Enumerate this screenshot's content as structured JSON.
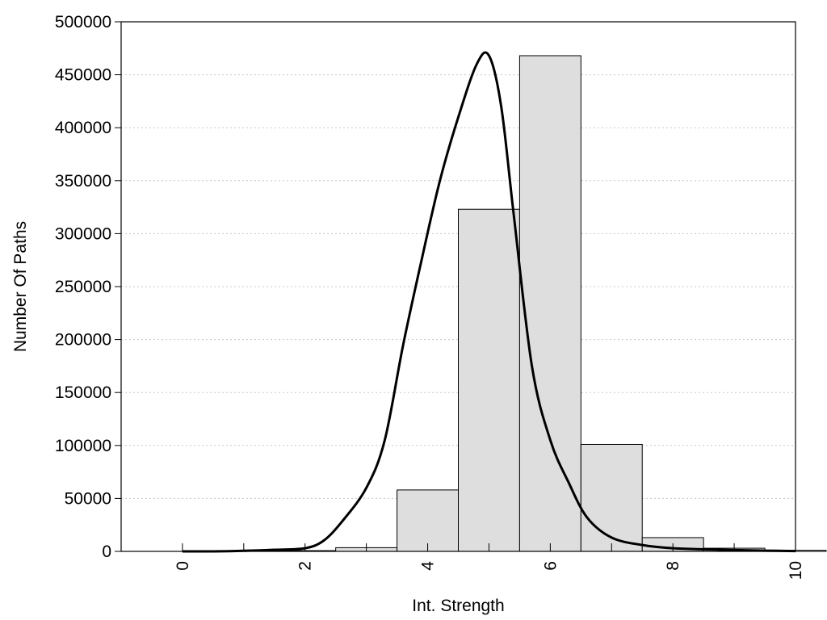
{
  "chart_data": {
    "type": "bar",
    "title": "",
    "xlabel": "Int. Strength",
    "ylabel": "Number Of Paths",
    "xlim": [
      -1,
      10
    ],
    "ylim": [
      0,
      500000
    ],
    "x_ticks": [
      0,
      2,
      4,
      6,
      8,
      10
    ],
    "x_tick_labels": [
      "0",
      "2",
      "4",
      "6",
      "8",
      "10"
    ],
    "y_ticks": [
      0,
      50000,
      100000,
      150000,
      200000,
      250000,
      300000,
      350000,
      400000,
      450000,
      500000
    ],
    "y_tick_labels": [
      "0",
      "50000",
      "100000",
      "150000",
      "200000",
      "250000",
      "300000",
      "350000",
      "400000",
      "450000",
      "500000"
    ],
    "grid": "horizontal-dotted",
    "bar_width": 1,
    "bar_color": "#dedede",
    "series": [
      {
        "kind": "histogram",
        "x": [
          0,
          1,
          2,
          3,
          4,
          5,
          6,
          7,
          8,
          9
        ],
        "values": [
          500,
          700,
          3500,
          58000,
          323000,
          468000,
          101000,
          13000,
          3000,
          1000
        ]
      },
      {
        "kind": "density-curve",
        "x": [
          0,
          0.5,
          1,
          1.5,
          2,
          2.3,
          2.6,
          3,
          3.3,
          3.6,
          3.9,
          4.2,
          4.5,
          4.8,
          5,
          5.2,
          5.4,
          5.7,
          6,
          6.3,
          6.6,
          7,
          7.5,
          8,
          8.5,
          9,
          9.5,
          10
        ],
        "values": [
          0,
          0,
          500,
          1500,
          3000,
          10000,
          28000,
          60000,
          105000,
          195000,
          275000,
          350000,
          410000,
          460000,
          468000,
          420000,
          320000,
          175000,
          105000,
          65000,
          32000,
          13000,
          6000,
          3000,
          2000,
          1200,
          700,
          300
        ]
      }
    ]
  }
}
